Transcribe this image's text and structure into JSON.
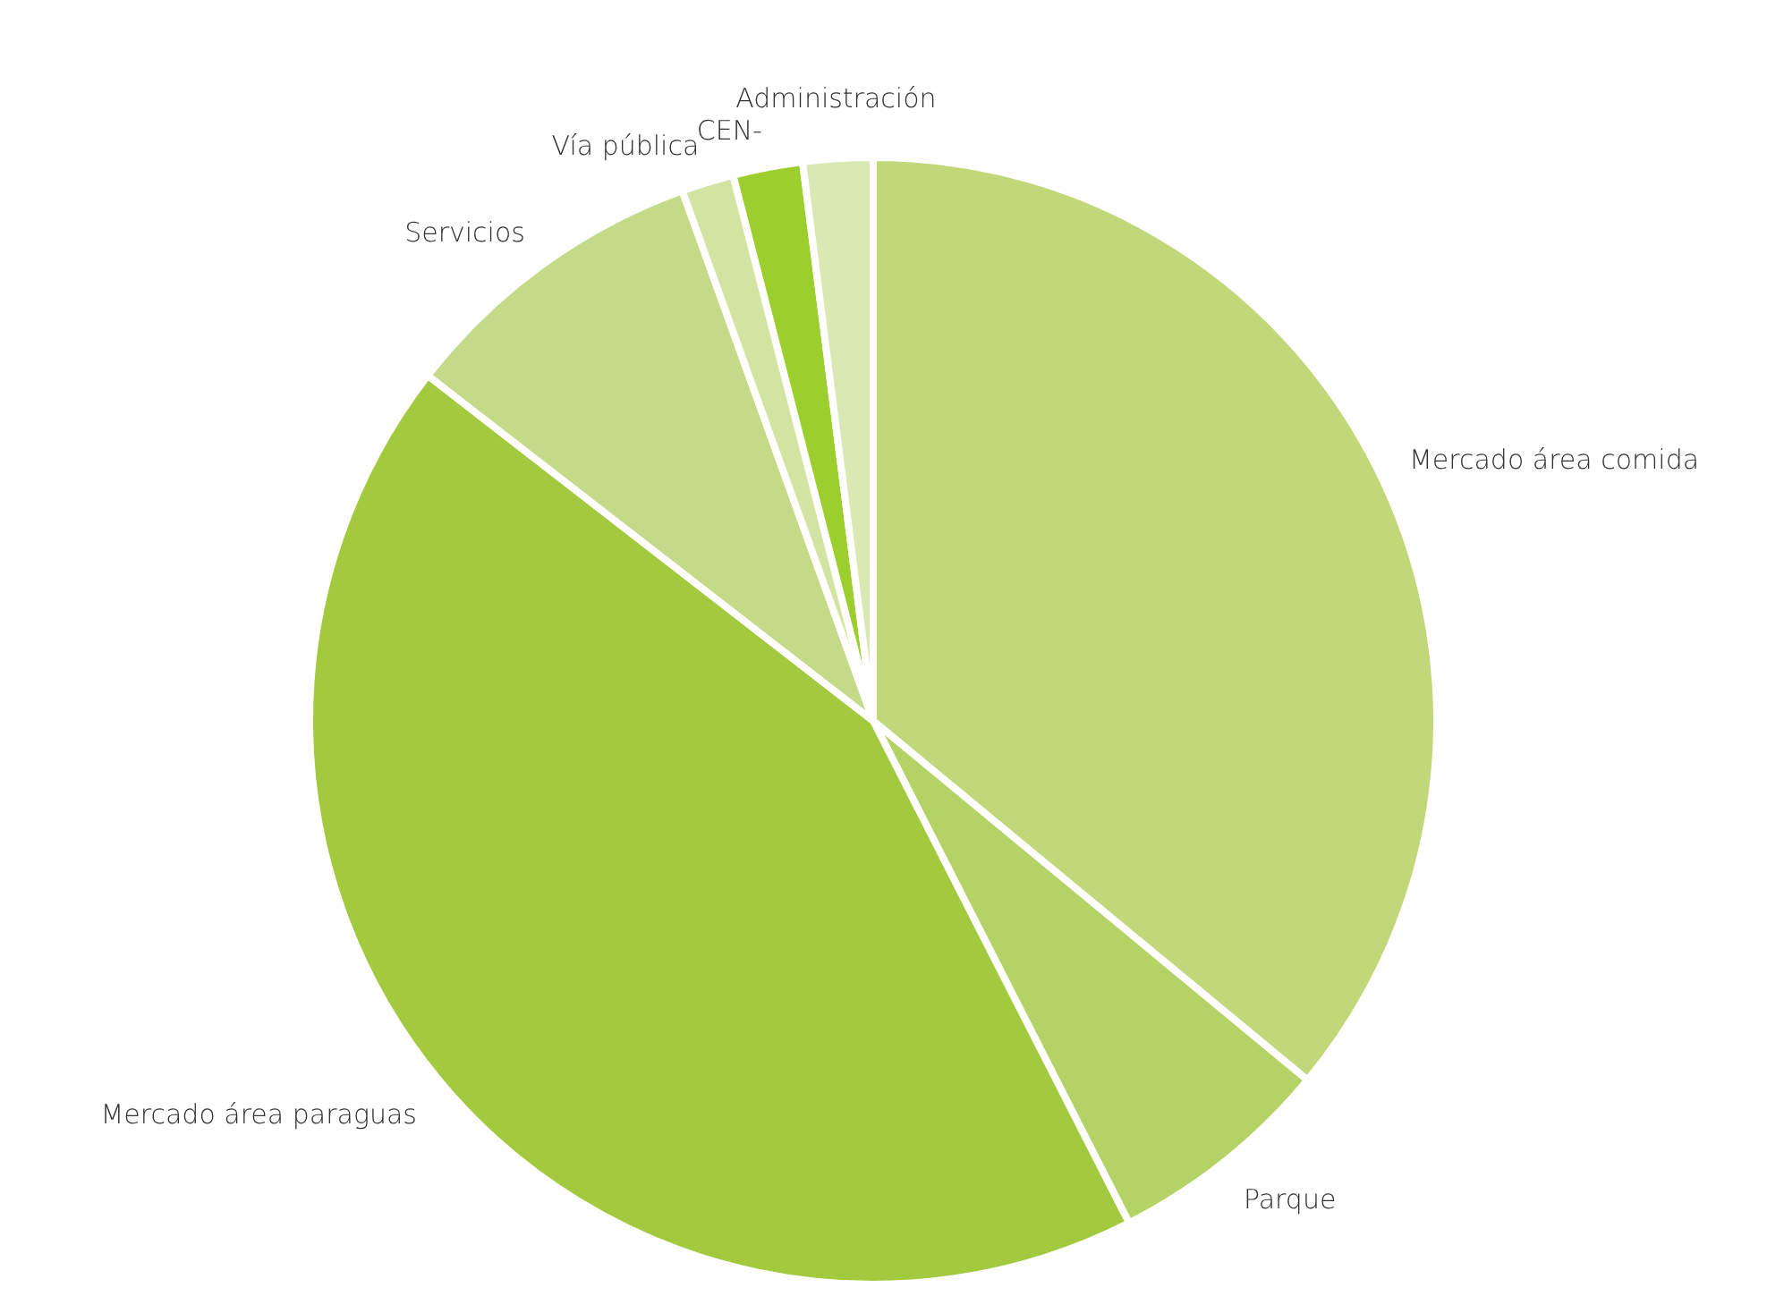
{
  "chart_data": {
    "type": "pie",
    "categories": [
      "Mercado área comida",
      "Parque",
      "Mercado área paraguas",
      "Servicios",
      "Vía pública",
      "CEN-",
      "Administración"
    ],
    "values": [
      36,
      6.5,
      43,
      9,
      1.5,
      2,
      2
    ],
    "colors": [
      "#c2d77a",
      "#b5d266",
      "#a3c93f",
      "#c5da88",
      "#d3e4a2",
      "#9ccf2e",
      "#dae8b4"
    ]
  }
}
